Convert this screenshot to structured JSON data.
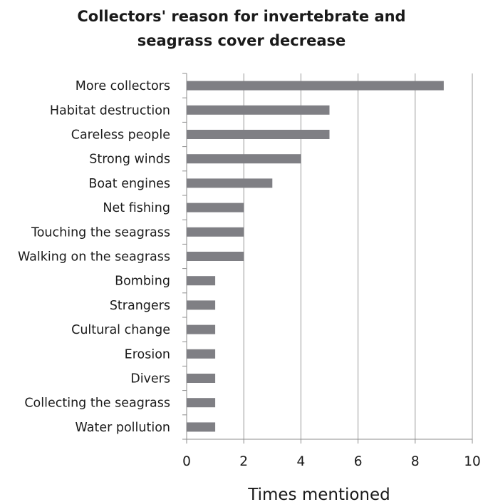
{
  "chart_data": {
    "type": "bar",
    "orientation": "horizontal",
    "title": "Collectors' reason for invertebrate and seagrass cover decrease",
    "title_lines": [
      "Collectors' reason for invertebrate and",
      "seagrass cover decrease"
    ],
    "categories": [
      "More collectors",
      "Habitat destruction",
      "Careless people",
      "Strong winds",
      "Boat engines",
      "Net fishing",
      "Touching the seagrass",
      "Walking on the seagrass",
      "Bombing",
      "Strangers",
      "Cultural change",
      "Erosion",
      "Divers",
      "Collecting the seagrass",
      "Water pollution"
    ],
    "values": [
      9,
      5,
      5,
      4,
      3,
      2,
      2,
      2,
      1,
      1,
      1,
      1,
      1,
      1,
      1
    ],
    "xlabel": "Times mentioned",
    "ylabel": "",
    "xlim": [
      0,
      10
    ],
    "xticks": [
      0,
      2,
      4,
      6,
      8,
      10
    ],
    "grid": "vertical",
    "legend": "none",
    "bar_color": "#7f7f84",
    "grid_color": "#9a9a9a",
    "axis_color": "#8c8c8c"
  }
}
